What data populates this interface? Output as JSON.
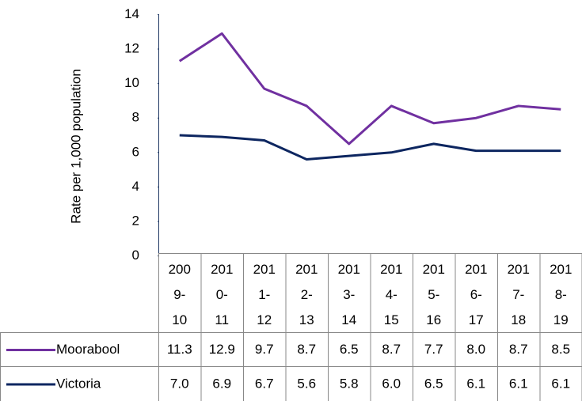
{
  "chart_data": {
    "type": "line",
    "y_label": "Rate per 1,000 population",
    "categories": [
      "2009-10",
      "2010-11",
      "2011-12",
      "2012-13",
      "2013-14",
      "2014-15",
      "2015-16",
      "2016-17",
      "2017-18",
      "2018-19"
    ],
    "series": [
      {
        "name": "Moorabool",
        "color": "#7030a0",
        "values": [
          11.3,
          12.9,
          9.7,
          8.7,
          6.5,
          8.7,
          7.7,
          8.0,
          8.7,
          8.5
        ],
        "value_labels": [
          "11.3",
          "12.9",
          "9.7",
          "8.7",
          "6.5",
          "8.7",
          "7.7",
          "8.0",
          "8.7",
          "8.5"
        ]
      },
      {
        "name": "Victoria",
        "color": "#0d2660",
        "values": [
          7.0,
          6.9,
          6.7,
          5.6,
          5.8,
          6.0,
          6.5,
          6.1,
          6.1,
          6.1
        ],
        "value_labels": [
          "7.0",
          "6.9",
          "6.7",
          "5.6",
          "5.8",
          "6.0",
          "6.5",
          "6.1",
          "6.1",
          "6.1"
        ]
      }
    ],
    "ylim": [
      0,
      14
    ],
    "yticks": [
      0,
      2,
      4,
      6,
      8,
      10,
      12,
      14
    ],
    "grid": false
  }
}
